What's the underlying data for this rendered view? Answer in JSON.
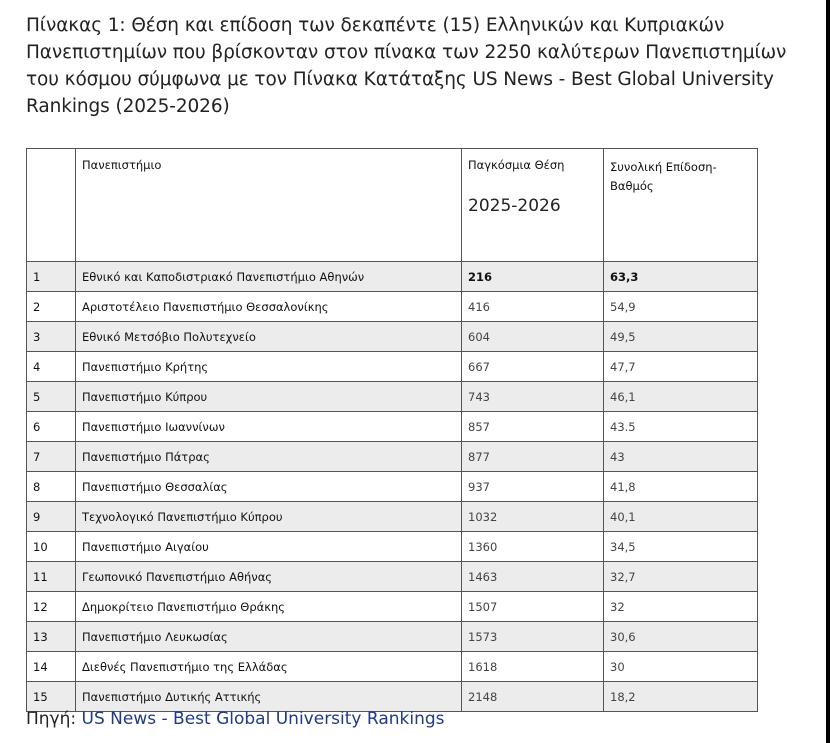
{
  "title": "Πίνακας 1: Θέση και επίδοση των δεκαπέντε (15) Ελληνικών και Κυπριακών Πανεπιστημίων που βρίσκονταν στον πίνακα των 2250 καλύτερων Πανεπιστημίων του κόσμου σύμφωνα με τον Πίνακα Κατάταξης  US News - Best Global University Rankings (2025-2026)",
  "table": {
    "headers": {
      "num": "",
      "university": "Πανεπιστήμιο",
      "world_rank": "Παγκόσμια Θέση",
      "world_rank_year": "2025-2026",
      "score": "Συνολική Επίδοση- Βαθμός"
    },
    "rows": [
      {
        "num": "1",
        "university": "Εθνικό και Καποδιστριακό Πανεπιστήμιο Αθηνών",
        "rank": "216",
        "score": "63,3"
      },
      {
        "num": "2",
        "university": "Αριστοτέλειο Πανεπιστήμιο Θεσσαλονίκης",
        "rank": "416",
        "score": "54,9"
      },
      {
        "num": "3",
        "university": "Εθνικό Μετσόβιο Πολυτεχνείο",
        "rank": "604",
        "score": "49,5"
      },
      {
        "num": "4",
        "university": "Πανεπιστήμιο Κρήτης",
        "rank": "667",
        "score": "47,7"
      },
      {
        "num": "5",
        "university": "Πανεπιστήμιο Κύπρου",
        "rank": "743",
        "score": "46,1"
      },
      {
        "num": "6",
        "university": "Πανεπιστήμιο Ιωαννίνων",
        "rank": "857",
        "score": "43.5"
      },
      {
        "num": "7",
        "university": "Πανεπιστήμιο Πάτρας",
        "rank": "877",
        "score": "43"
      },
      {
        "num": "8",
        "university": "Πανεπιστήμιο Θεσσαλίας",
        "rank": "937",
        "score": "41,8"
      },
      {
        "num": "9",
        "university": "Τεχνολογικό Πανεπιστήμιο Κύπρου",
        "rank": "1032",
        "score": "40,1"
      },
      {
        "num": "10",
        "university": "Πανεπιστήμιο  Αιγαίου",
        "rank": "1360",
        "score": "34,5"
      },
      {
        "num": "11",
        "university": "Γεωπονικό Πανεπιστήμιο Αθήνας",
        "rank": "1463",
        "score": "32,7"
      },
      {
        "num": "12",
        "university": "Δημοκρίτειο Πανεπιστήμιο Θράκης",
        "rank": "1507",
        "score": "32"
      },
      {
        "num": "13",
        "university": "Πανεπιστήμιο Λευκωσίας",
        "rank": "1573",
        "score": "30,6"
      },
      {
        "num": "14",
        "university": "Διεθνές Πανεπιστήμιο της Ελλάδας",
        "rank": "1618",
        "score": "30"
      },
      {
        "num": "15",
        "university": "Πανεπιστήμιο Δυτικής Αττικής",
        "rank": "2148",
        "score": "18,2"
      }
    ]
  },
  "source": {
    "label": "Πηγή:",
    "link_text": "US News - Best Global University Rankings"
  }
}
